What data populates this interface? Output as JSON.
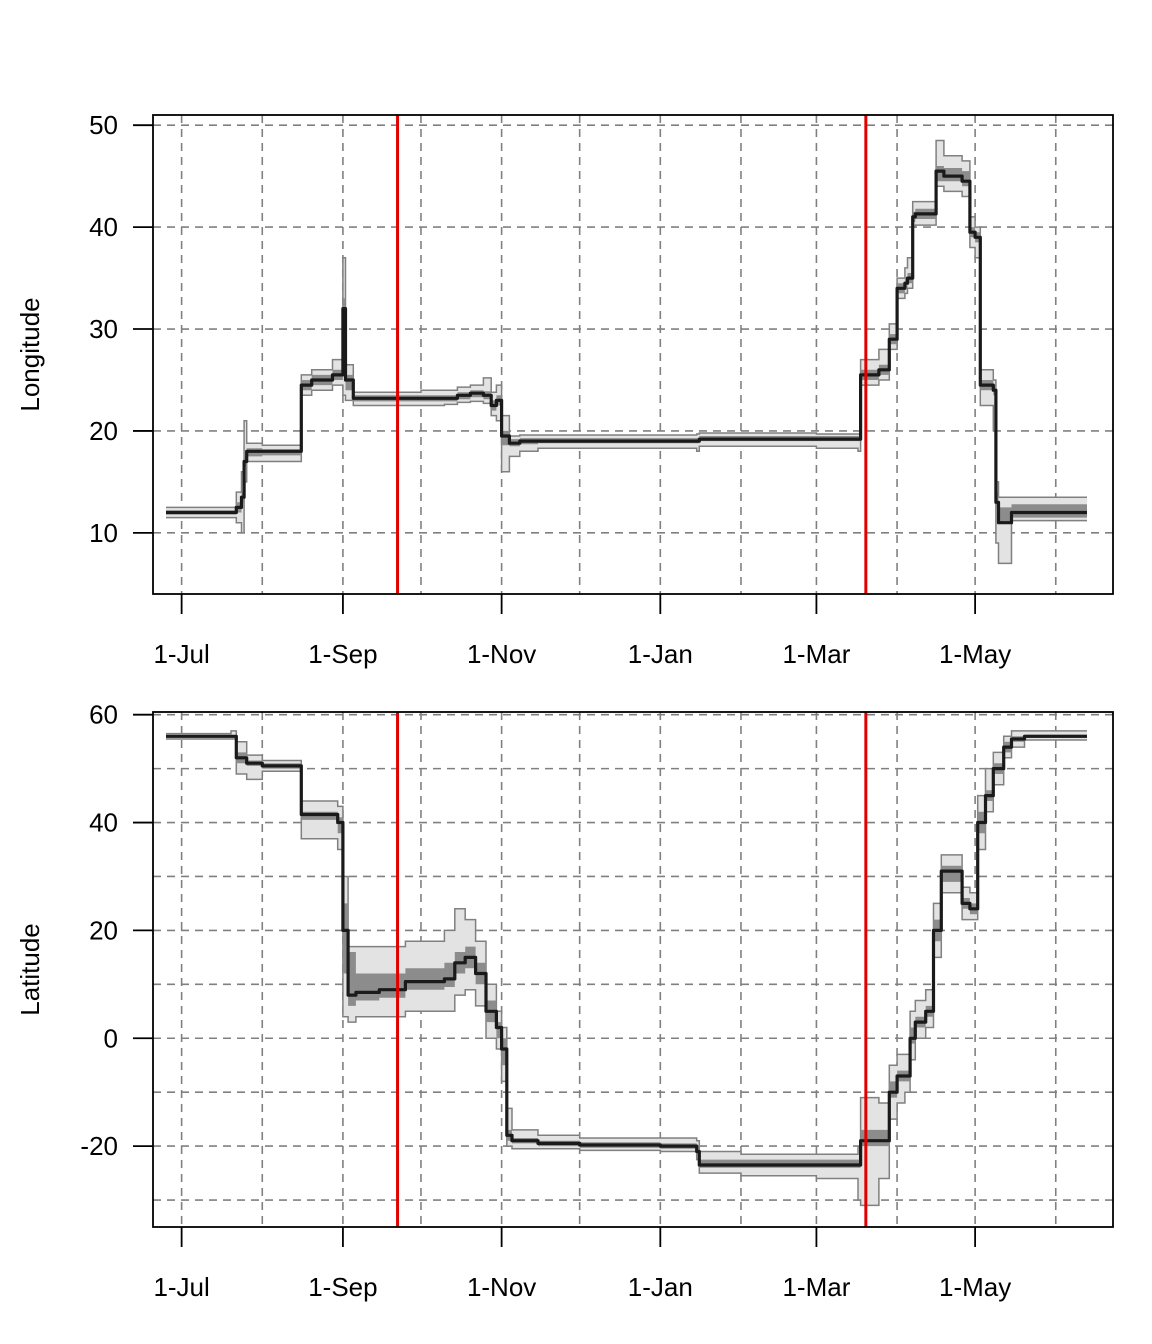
{
  "chart_data": [
    {
      "type": "line",
      "ylabel": "Longitude",
      "xlabel": "",
      "title": "",
      "ylim": [
        4,
        51
      ],
      "y_ticks": [
        10,
        20,
        30,
        40,
        50
      ],
      "x_ticks": [
        {
          "date": "2015-07-01",
          "label": "1-Jul"
        },
        {
          "date": "2015-09-01",
          "label": "1-Sep"
        },
        {
          "date": "2015-11-01",
          "label": "1-Nov"
        },
        {
          "date": "2016-01-01",
          "label": "1-Jan"
        },
        {
          "date": "2016-03-01",
          "label": "1-Mar"
        },
        {
          "date": "2016-05-01",
          "label": "1-May"
        }
      ],
      "x_grid_dates": [
        "2015-07-01",
        "2015-08-01",
        "2015-09-01",
        "2015-10-01",
        "2015-11-01",
        "2015-12-01",
        "2016-01-01",
        "2016-02-01",
        "2016-03-01",
        "2016-04-01",
        "2016-05-01",
        "2016-06-01"
      ],
      "y_grid": [
        10,
        20,
        30,
        40,
        50
      ],
      "xlim": [
        "2015-06-20",
        "2016-06-23"
      ],
      "grid": true,
      "vlines": [
        "2015-09-22",
        "2016-03-20"
      ],
      "colors": {
        "median": "#1a1a1a",
        "band_inner": "#8c8c8c",
        "band_outer": "#e3e3e3",
        "outer_edge": "#808080",
        "vline": "#e00000",
        "grid": "#808080"
      },
      "series": [
        {
          "x": [
            "2015-06-25",
            "2015-07-18",
            "2015-07-22",
            "2015-07-24",
            "2015-07-25",
            "2015-07-26",
            "2015-08-01",
            "2015-08-15",
            "2015-08-16",
            "2015-08-20",
            "2015-08-28",
            "2015-09-01",
            "2015-09-02",
            "2015-09-05",
            "2015-09-15",
            "2015-10-01",
            "2015-10-10",
            "2015-10-15",
            "2015-10-20",
            "2015-10-25",
            "2015-10-28",
            "2015-10-30",
            "2015-11-01",
            "2015-11-04",
            "2015-11-08",
            "2015-11-15",
            "2015-12-01",
            "2016-01-01",
            "2016-01-15",
            "2016-01-16",
            "2016-02-01",
            "2016-03-01",
            "2016-03-17",
            "2016-03-18",
            "2016-03-25",
            "2016-03-29",
            "2016-04-01",
            "2016-04-04",
            "2016-04-05",
            "2016-04-07",
            "2016-04-08",
            "2016-04-15",
            "2016-04-16",
            "2016-04-19",
            "2016-04-25",
            "2016-04-26",
            "2016-04-29",
            "2016-05-01",
            "2016-05-03",
            "2016-05-08",
            "2016-05-09",
            "2016-05-10",
            "2016-05-15",
            "2016-06-01",
            "2016-06-13"
          ],
          "median": [
            12,
            12,
            12.5,
            13.5,
            17,
            18,
            18,
            18,
            24.5,
            25,
            25.5,
            32,
            25,
            23.2,
            23.2,
            23.2,
            23.2,
            23.5,
            23.7,
            23.5,
            22.5,
            23,
            19.5,
            18.8,
            19,
            19,
            19,
            19,
            19,
            19.2,
            19.2,
            19.2,
            19.2,
            25.5,
            26,
            29,
            34,
            34.5,
            35,
            41,
            41.3,
            41.3,
            45.5,
            45,
            45,
            44.5,
            39.5,
            39,
            24.5,
            24,
            13,
            11,
            12,
            12,
            12
          ],
          "inner_low": [
            11.8,
            11.8,
            12,
            13,
            16.5,
            17.5,
            17.6,
            17.6,
            24,
            24.5,
            25,
            26,
            24,
            22.9,
            22.9,
            22.9,
            22.9,
            23.1,
            23.3,
            23.1,
            22,
            22.5,
            18.6,
            18.5,
            18.7,
            18.8,
            18.8,
            18.8,
            18.8,
            19,
            19,
            19,
            19,
            25,
            25.5,
            28.5,
            33.5,
            34,
            34.5,
            40.5,
            40.8,
            40.8,
            44.5,
            44.5,
            44.5,
            44,
            39,
            38.5,
            24,
            23.5,
            12.5,
            11,
            11.5,
            11.5,
            11.5
          ],
          "inner_high": [
            12.2,
            12.2,
            13,
            14,
            17.5,
            18.3,
            18.2,
            18.2,
            25,
            25.5,
            26,
            33,
            25.5,
            23.5,
            23.5,
            23.5,
            23.5,
            23.8,
            24,
            23.9,
            23,
            23.5,
            20,
            19.2,
            19.3,
            19.3,
            19.3,
            19.3,
            19.3,
            19.5,
            19.5,
            19.5,
            19.5,
            26,
            26.5,
            29.5,
            34.5,
            35,
            35.5,
            41.5,
            41.8,
            41.8,
            46,
            45.8,
            45.8,
            45.5,
            40,
            39.5,
            25,
            24.5,
            14,
            12.5,
            12.8,
            12.8,
            12.8
          ],
          "outer_low": [
            11.5,
            11.5,
            11,
            10,
            15,
            17,
            17,
            17,
            23.5,
            24,
            24.5,
            23.5,
            23,
            22.5,
            22.5,
            22.5,
            22.6,
            22.8,
            22.9,
            22.7,
            21.5,
            21,
            16,
            17.5,
            18,
            18.3,
            18.3,
            18.3,
            18,
            18.5,
            18.5,
            18.3,
            18,
            24.5,
            25,
            28,
            33,
            33.5,
            34,
            40,
            40.2,
            40.2,
            44,
            43.5,
            43.5,
            43,
            38,
            37,
            22.5,
            20,
            9,
            7,
            11.2,
            11.2,
            11.2
          ],
          "outer_high": [
            12.5,
            12.5,
            14,
            16,
            21,
            18.8,
            18.6,
            18.6,
            25.5,
            26,
            27,
            37,
            26.5,
            23.8,
            23.8,
            24,
            24,
            24.3,
            24.5,
            25.2,
            23.8,
            24.5,
            21.5,
            19.5,
            19.6,
            19.6,
            19.6,
            19.6,
            19.7,
            19.8,
            19.8,
            19.7,
            19.7,
            27,
            28,
            30.5,
            35,
            36,
            37,
            42.5,
            42.5,
            42.5,
            48.5,
            47,
            47,
            46.5,
            41,
            40,
            26,
            25,
            15,
            13.5,
            13.5,
            13.5,
            13.5
          ]
        }
      ]
    },
    {
      "type": "line",
      "ylabel": "Latitude",
      "xlabel": "",
      "title": "",
      "ylim": [
        -35,
        60.5
      ],
      "y_ticks": [
        -20,
        0,
        20,
        40,
        60
      ],
      "x_ticks": [
        {
          "date": "2015-07-01",
          "label": "1-Jul"
        },
        {
          "date": "2015-09-01",
          "label": "1-Sep"
        },
        {
          "date": "2015-11-01",
          "label": "1-Nov"
        },
        {
          "date": "2016-01-01",
          "label": "1-Jan"
        },
        {
          "date": "2016-03-01",
          "label": "1-Mar"
        },
        {
          "date": "2016-05-01",
          "label": "1-May"
        }
      ],
      "x_grid_dates": [
        "2015-07-01",
        "2015-08-01",
        "2015-09-01",
        "2015-10-01",
        "2015-11-01",
        "2015-12-01",
        "2016-01-01",
        "2016-02-01",
        "2016-03-01",
        "2016-04-01",
        "2016-05-01",
        "2016-06-01"
      ],
      "y_grid": [
        -30,
        -20,
        -10,
        0,
        10,
        20,
        30,
        40,
        50,
        60
      ],
      "xlim": [
        "2015-06-20",
        "2016-06-23"
      ],
      "grid": true,
      "vlines": [
        "2015-09-22",
        "2016-03-20"
      ],
      "colors": {
        "median": "#1a1a1a",
        "band_inner": "#8c8c8c",
        "band_outer": "#e3e3e3",
        "outer_edge": "#808080",
        "vline": "#e00000",
        "grid": "#808080"
      },
      "series": [
        {
          "x": [
            "2015-06-25",
            "2015-07-20",
            "2015-07-22",
            "2015-07-26",
            "2015-08-01",
            "2015-08-15",
            "2015-08-16",
            "2015-08-28",
            "2015-08-30",
            "2015-09-01",
            "2015-09-03",
            "2015-09-06",
            "2015-09-15",
            "2015-09-25",
            "2015-10-05",
            "2015-10-10",
            "2015-10-14",
            "2015-10-18",
            "2015-10-22",
            "2015-10-26",
            "2015-10-30",
            "2015-11-01",
            "2015-11-03",
            "2015-11-05",
            "2015-11-15",
            "2015-12-01",
            "2016-01-01",
            "2016-01-15",
            "2016-01-16",
            "2016-02-01",
            "2016-03-01",
            "2016-03-17",
            "2016-03-18",
            "2016-03-25",
            "2016-03-29",
            "2016-04-01",
            "2016-04-04",
            "2016-04-06",
            "2016-04-08",
            "2016-04-12",
            "2016-04-15",
            "2016-04-18",
            "2016-04-24",
            "2016-04-26",
            "2016-04-29",
            "2016-05-02",
            "2016-05-05",
            "2016-05-08",
            "2016-05-12",
            "2016-05-15",
            "2016-05-20",
            "2016-06-13"
          ],
          "median": [
            56,
            56,
            52,
            51,
            50.5,
            50.5,
            41.5,
            41.5,
            40,
            20,
            8,
            8.5,
            9,
            10.5,
            10.5,
            11,
            14,
            15,
            12,
            5,
            2,
            -2,
            -18,
            -19,
            -19.5,
            -19.8,
            -20,
            -21,
            -23.5,
            -23.5,
            -23.5,
            -23.5,
            -19,
            -19,
            -10,
            -7,
            -7,
            0,
            3,
            5,
            20,
            31,
            31,
            25,
            24,
            40,
            45,
            50,
            54,
            55.5,
            56,
            56
          ],
          "inner_low": [
            55.8,
            55.8,
            51,
            50.5,
            50,
            50,
            40.5,
            40.5,
            38,
            12,
            6,
            7,
            7.5,
            9,
            9,
            9.5,
            12,
            13,
            10,
            3,
            0,
            -5,
            -19,
            -19.5,
            -20,
            -20.3,
            -20.5,
            -21.5,
            -24,
            -24,
            -24,
            -24,
            -20,
            -20,
            -11,
            -8,
            -8,
            -1,
            2,
            4,
            18,
            29,
            29,
            24,
            23,
            38,
            44,
            49,
            53,
            55,
            55.7,
            55.7
          ],
          "inner_high": [
            56.2,
            56.2,
            53,
            51.5,
            51,
            51,
            42,
            42,
            41,
            25,
            16,
            12,
            12,
            13,
            13,
            14,
            16,
            17,
            14,
            7,
            3,
            0,
            -17,
            -18.5,
            -19,
            -19.3,
            -19.5,
            -20,
            -22.5,
            -22.5,
            -22.5,
            -22.5,
            -17,
            -17,
            -8,
            -6,
            -6,
            2,
            4,
            6,
            22,
            32,
            32,
            26,
            25,
            42,
            46,
            51,
            55,
            56,
            56.3,
            56.3
          ],
          "outer_low": [
            55.5,
            55.5,
            49,
            48,
            49.5,
            49.5,
            37,
            37,
            35,
            4,
            3,
            4,
            4,
            5,
            5,
            5,
            8,
            9,
            6,
            0,
            -2,
            -8,
            -20,
            -20.5,
            -20.5,
            -20.8,
            -21,
            -22.5,
            -25,
            -25.5,
            -26,
            -30,
            -31,
            -26,
            -15,
            -12,
            -10,
            -4,
            0,
            2,
            15,
            27,
            27,
            22,
            22,
            35,
            42,
            47,
            52,
            54,
            55.3,
            55.3
          ],
          "outer_high": [
            56.5,
            57,
            55,
            52.5,
            51.5,
            51.5,
            44,
            44,
            43,
            30,
            17,
            17,
            17,
            18,
            18,
            20,
            24,
            22,
            18,
            10,
            5,
            2,
            -13,
            -17,
            -18,
            -18.5,
            -18.5,
            -19,
            -21,
            -21.5,
            -21.5,
            -20,
            -11,
            -12,
            -5,
            -3,
            -3,
            5,
            7,
            9,
            25,
            34,
            34,
            28,
            27,
            45,
            50,
            53,
            56,
            57,
            57,
            57
          ]
        }
      ]
    }
  ]
}
